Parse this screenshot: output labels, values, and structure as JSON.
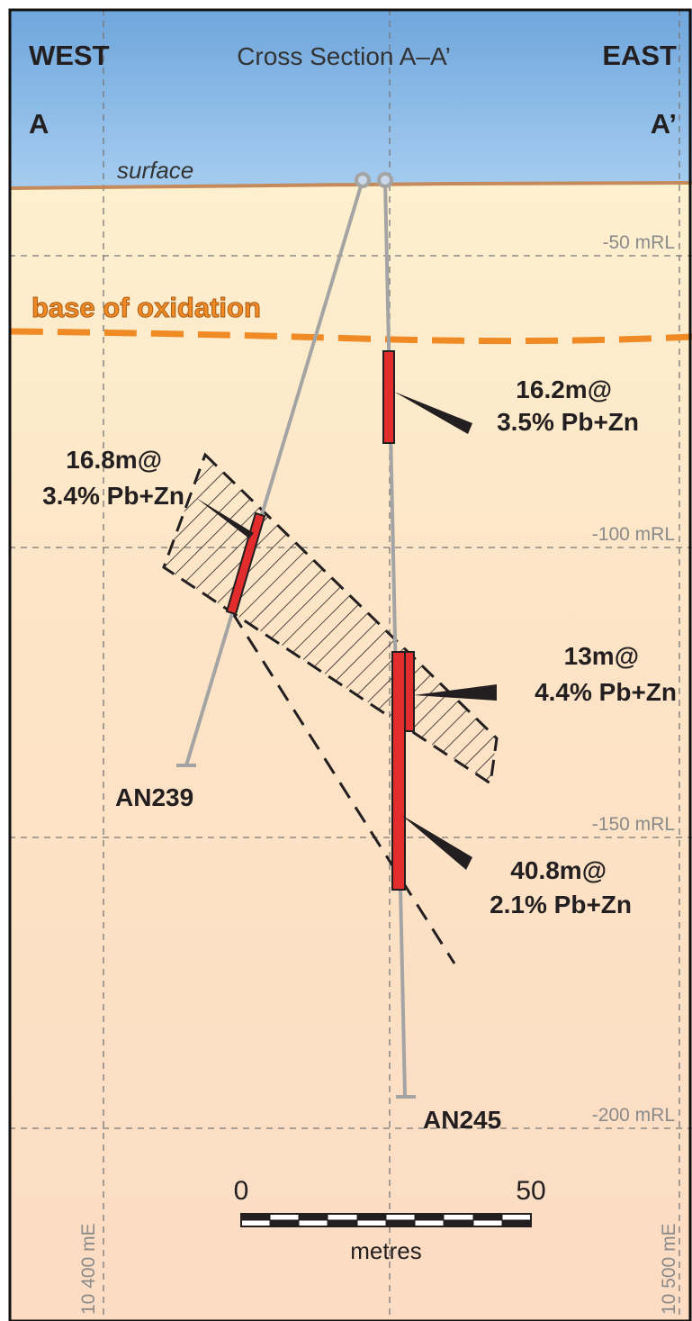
{
  "title": "Cross Section A–A’",
  "labels": {
    "west": "WEST",
    "east": "EAST",
    "a": "A",
    "a_prime": "A’",
    "surface": "surface",
    "base_of_oxidation": "base of oxidation"
  },
  "rl_labels": [
    "-50 mRL",
    "-100 mRL",
    "-150 mRL",
    "-200 mRL"
  ],
  "intercepts": [
    {
      "length": "16.2m@",
      "grade": "3.5% Pb+Zn"
    },
    {
      "length": "16.8m@",
      "grade": "3.4% Pb+Zn"
    },
    {
      "length": "13m@",
      "grade": "4.4% Pb+Zn"
    },
    {
      "length": "40.8m@",
      "grade": "2.1% Pb+Zn"
    }
  ],
  "holes": [
    "AN239",
    "AN245"
  ],
  "scale": {
    "start": "0",
    "end": "50",
    "unit": "metres"
  },
  "eastings": [
    "10 400 mE",
    "10 500 mE"
  ]
}
